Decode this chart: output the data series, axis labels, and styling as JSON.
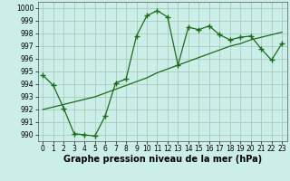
{
  "xlabel": "Graphe pression niveau de la mer (hPa)",
  "bg_color": "#cceee8",
  "grid_color": "#aaccbb",
  "line_color": "#1a6b1a",
  "line1_x": [
    0,
    1,
    2,
    3,
    4,
    5,
    6,
    7,
    8,
    9,
    10,
    11,
    12,
    13,
    14,
    15,
    16,
    17,
    18,
    19,
    20,
    21,
    22,
    23
  ],
  "line1_y": [
    994.7,
    993.9,
    992.1,
    990.1,
    990.0,
    989.9,
    991.5,
    994.1,
    994.4,
    997.8,
    999.4,
    999.8,
    999.3,
    995.5,
    998.5,
    998.3,
    998.6,
    997.9,
    997.5,
    997.7,
    997.8,
    996.8,
    995.9,
    997.2
  ],
  "line2_x": [
    0,
    1,
    2,
    3,
    4,
    5,
    6,
    7,
    8,
    9,
    10,
    11,
    12,
    13,
    14,
    15,
    16,
    17,
    18,
    19,
    20,
    21,
    22,
    23
  ],
  "line2_y": [
    992.0,
    992.2,
    992.4,
    992.6,
    992.8,
    993.0,
    993.3,
    993.6,
    993.9,
    994.2,
    994.5,
    994.9,
    995.2,
    995.5,
    995.8,
    996.1,
    996.4,
    996.7,
    997.0,
    997.2,
    997.5,
    997.7,
    997.9,
    998.1
  ],
  "ylim": [
    989.5,
    1000.5
  ],
  "yticks": [
    990,
    991,
    992,
    993,
    994,
    995,
    996,
    997,
    998,
    999,
    1000
  ],
  "xticks": [
    0,
    1,
    2,
    3,
    4,
    5,
    6,
    7,
    8,
    9,
    10,
    11,
    12,
    13,
    14,
    15,
    16,
    17,
    18,
    19,
    20,
    21,
    22,
    23
  ],
  "markersize": 4,
  "linewidth": 0.9,
  "xlabel_fontsize": 7,
  "tick_fontsize": 5.5
}
